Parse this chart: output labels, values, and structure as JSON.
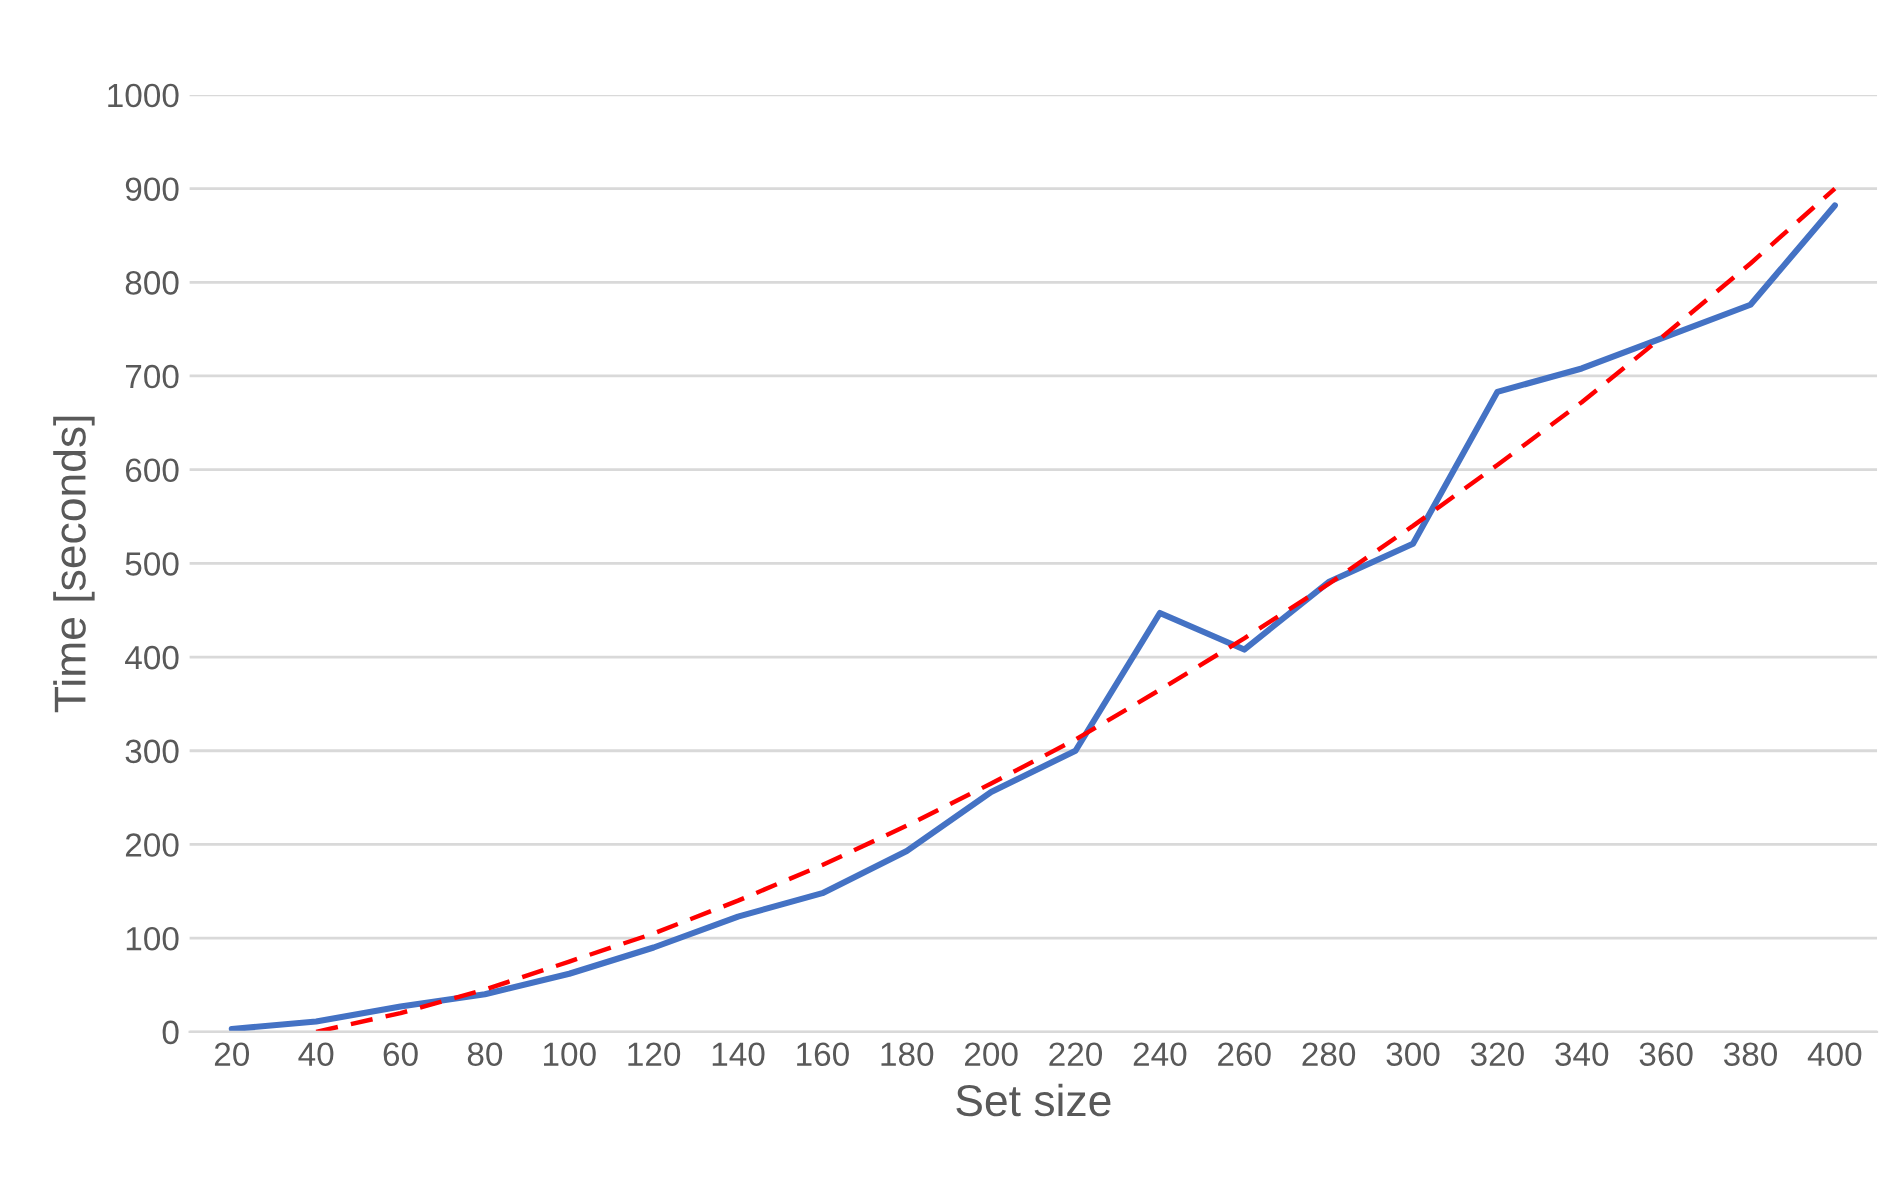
{
  "chart_data": {
    "type": "line",
    "xlabel": "Set size",
    "ylabel": "Time [seconds]",
    "categories": [
      "20",
      "40",
      "60",
      "80",
      "100",
      "120",
      "140",
      "160",
      "180",
      "200",
      "220",
      "240",
      "260",
      "280",
      "300",
      "320",
      "340",
      "360",
      "380",
      "400"
    ],
    "series": [
      {
        "color": "#4472c4",
        "line_style": "solid",
        "values": [
          3,
          11,
          27,
          40,
          62,
          90,
          123,
          148,
          193,
          256,
          300,
          447,
          408,
          480,
          521,
          683,
          708,
          742,
          776,
          882
        ]
      },
      {
        "color": "#ff0000",
        "line_style": "dashed",
        "values": [
          null,
          0,
          20,
          45,
          75,
          105,
          140,
          178,
          220,
          265,
          312,
          365,
          420,
          478,
          540,
          605,
          672,
          745,
          820,
          900
        ]
      }
    ],
    "ylim": [
      0,
      1000
    ],
    "yticks": [
      0,
      100,
      200,
      300,
      400,
      500,
      600,
      700,
      800,
      900,
      1000
    ],
    "grid": "y",
    "marker": "none"
  }
}
